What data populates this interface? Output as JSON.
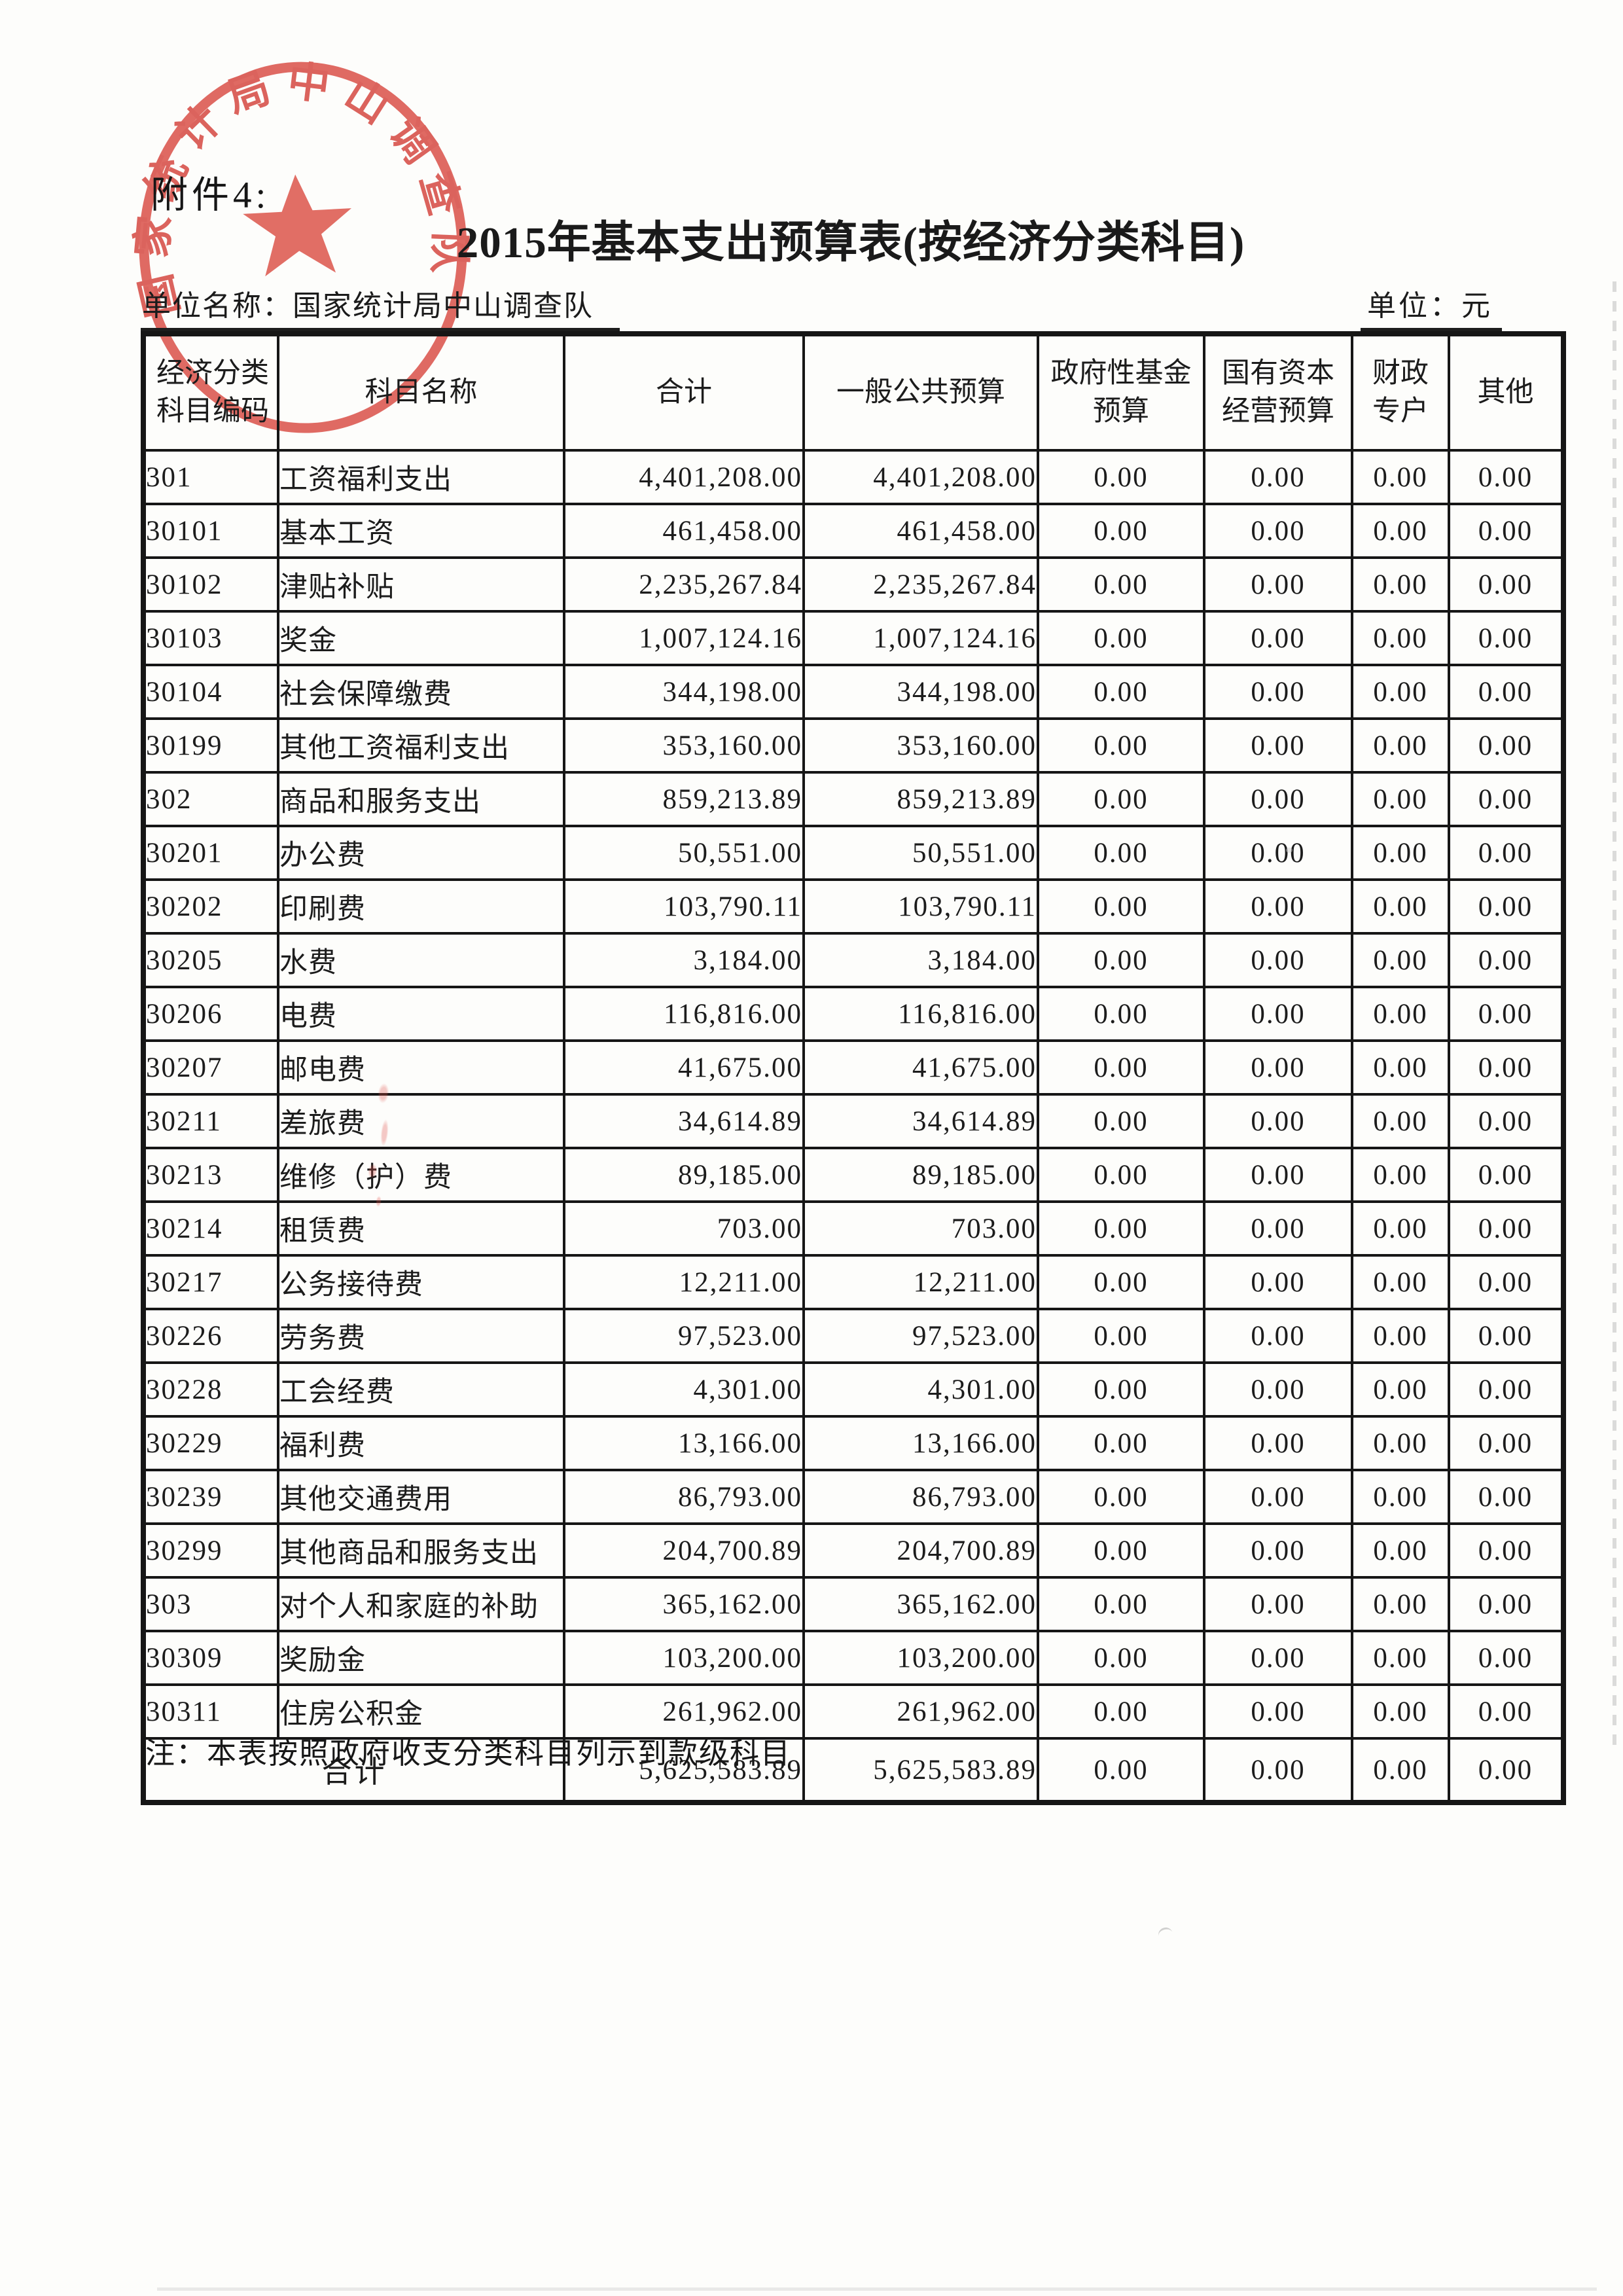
{
  "page": {
    "attachment_label": "附件4:",
    "title": "2015年基本支出预算表(按经济分类科目)",
    "unit_name_label": "单位名称：",
    "unit_name": "国家统计局中山调查队",
    "unit_label": "单位：元",
    "note": "注：本表按照政府收支分类科目列示到款级科目"
  },
  "seal": {
    "ring_text": "国家统计局中山调查队",
    "color": "#d9473e",
    "star_icon": "five-pointed-star"
  },
  "table": {
    "headers": [
      [
        "经济分类",
        "科目编码"
      ],
      [
        "科目名称"
      ],
      [
        "合计"
      ],
      [
        "一般公共预算"
      ],
      [
        "政府性基金",
        "预算"
      ],
      [
        "国有资本",
        "经营预算"
      ],
      [
        "财政",
        "专户"
      ],
      [
        "其他"
      ]
    ],
    "rows": [
      {
        "code": "301",
        "name": "工资福利支出",
        "total": "4,401,208.00",
        "general": "4,401,208.00",
        "gov_fund": "0.00",
        "state_capital": "0.00",
        "fiscal_account": "0.00",
        "other": "0.00"
      },
      {
        "code": "30101",
        "name": "基本工资",
        "total": "461,458.00",
        "general": "461,458.00",
        "gov_fund": "0.00",
        "state_capital": "0.00",
        "fiscal_account": "0.00",
        "other": "0.00"
      },
      {
        "code": "30102",
        "name": "津贴补贴",
        "total": "2,235,267.84",
        "general": "2,235,267.84",
        "gov_fund": "0.00",
        "state_capital": "0.00",
        "fiscal_account": "0.00",
        "other": "0.00"
      },
      {
        "code": "30103",
        "name": "奖金",
        "total": "1,007,124.16",
        "general": "1,007,124.16",
        "gov_fund": "0.00",
        "state_capital": "0.00",
        "fiscal_account": "0.00",
        "other": "0.00"
      },
      {
        "code": "30104",
        "name": "社会保障缴费",
        "total": "344,198.00",
        "general": "344,198.00",
        "gov_fund": "0.00",
        "state_capital": "0.00",
        "fiscal_account": "0.00",
        "other": "0.00"
      },
      {
        "code": "30199",
        "name": "其他工资福利支出",
        "total": "353,160.00",
        "general": "353,160.00",
        "gov_fund": "0.00",
        "state_capital": "0.00",
        "fiscal_account": "0.00",
        "other": "0.00"
      },
      {
        "code": "302",
        "name": "商品和服务支出",
        "total": "859,213.89",
        "general": "859,213.89",
        "gov_fund": "0.00",
        "state_capital": "0.00",
        "fiscal_account": "0.00",
        "other": "0.00"
      },
      {
        "code": "30201",
        "name": "办公费",
        "total": "50,551.00",
        "general": "50,551.00",
        "gov_fund": "0.00",
        "state_capital": "0.00",
        "fiscal_account": "0.00",
        "other": "0.00"
      },
      {
        "code": "30202",
        "name": "印刷费",
        "total": "103,790.11",
        "general": "103,790.11",
        "gov_fund": "0.00",
        "state_capital": "0.00",
        "fiscal_account": "0.00",
        "other": "0.00"
      },
      {
        "code": "30205",
        "name": "水费",
        "total": "3,184.00",
        "general": "3,184.00",
        "gov_fund": "0.00",
        "state_capital": "0.00",
        "fiscal_account": "0.00",
        "other": "0.00"
      },
      {
        "code": "30206",
        "name": "电费",
        "total": "116,816.00",
        "general": "116,816.00",
        "gov_fund": "0.00",
        "state_capital": "0.00",
        "fiscal_account": "0.00",
        "other": "0.00"
      },
      {
        "code": "30207",
        "name": "邮电费",
        "total": "41,675.00",
        "general": "41,675.00",
        "gov_fund": "0.00",
        "state_capital": "0.00",
        "fiscal_account": "0.00",
        "other": "0.00"
      },
      {
        "code": "30211",
        "name": "差旅费",
        "total": "34,614.89",
        "general": "34,614.89",
        "gov_fund": "0.00",
        "state_capital": "0.00",
        "fiscal_account": "0.00",
        "other": "0.00"
      },
      {
        "code": "30213",
        "name": "维修（护）费",
        "total": "89,185.00",
        "general": "89,185.00",
        "gov_fund": "0.00",
        "state_capital": "0.00",
        "fiscal_account": "0.00",
        "other": "0.00"
      },
      {
        "code": "30214",
        "name": "租赁费",
        "total": "703.00",
        "general": "703.00",
        "gov_fund": "0.00",
        "state_capital": "0.00",
        "fiscal_account": "0.00",
        "other": "0.00"
      },
      {
        "code": "30217",
        "name": "公务接待费",
        "total": "12,211.00",
        "general": "12,211.00",
        "gov_fund": "0.00",
        "state_capital": "0.00",
        "fiscal_account": "0.00",
        "other": "0.00"
      },
      {
        "code": "30226",
        "name": "劳务费",
        "total": "97,523.00",
        "general": "97,523.00",
        "gov_fund": "0.00",
        "state_capital": "0.00",
        "fiscal_account": "0.00",
        "other": "0.00"
      },
      {
        "code": "30228",
        "name": "工会经费",
        "total": "4,301.00",
        "general": "4,301.00",
        "gov_fund": "0.00",
        "state_capital": "0.00",
        "fiscal_account": "0.00",
        "other": "0.00"
      },
      {
        "code": "30229",
        "name": "福利费",
        "total": "13,166.00",
        "general": "13,166.00",
        "gov_fund": "0.00",
        "state_capital": "0.00",
        "fiscal_account": "0.00",
        "other": "0.00"
      },
      {
        "code": "30239",
        "name": "其他交通费用",
        "total": "86,793.00",
        "general": "86,793.00",
        "gov_fund": "0.00",
        "state_capital": "0.00",
        "fiscal_account": "0.00",
        "other": "0.00"
      },
      {
        "code": "30299",
        "name": "其他商品和服务支出",
        "total": "204,700.89",
        "general": "204,700.89",
        "gov_fund": "0.00",
        "state_capital": "0.00",
        "fiscal_account": "0.00",
        "other": "0.00"
      },
      {
        "code": "303",
        "name": "对个人和家庭的补助",
        "total": "365,162.00",
        "general": "365,162.00",
        "gov_fund": "0.00",
        "state_capital": "0.00",
        "fiscal_account": "0.00",
        "other": "0.00"
      },
      {
        "code": "30309",
        "name": "奖励金",
        "total": "103,200.00",
        "general": "103,200.00",
        "gov_fund": "0.00",
        "state_capital": "0.00",
        "fiscal_account": "0.00",
        "other": "0.00"
      },
      {
        "code": "30311",
        "name": "住房公积金",
        "total": "261,962.00",
        "general": "261,962.00",
        "gov_fund": "0.00",
        "state_capital": "0.00",
        "fiscal_account": "0.00",
        "other": "0.00"
      }
    ],
    "total_row": {
      "label": "合计",
      "total": "5,625,583.89",
      "general": "5,625,583.89",
      "gov_fund": "0.00",
      "state_capital": "0.00",
      "fiscal_account": "0.00",
      "other": "0.00"
    }
  }
}
